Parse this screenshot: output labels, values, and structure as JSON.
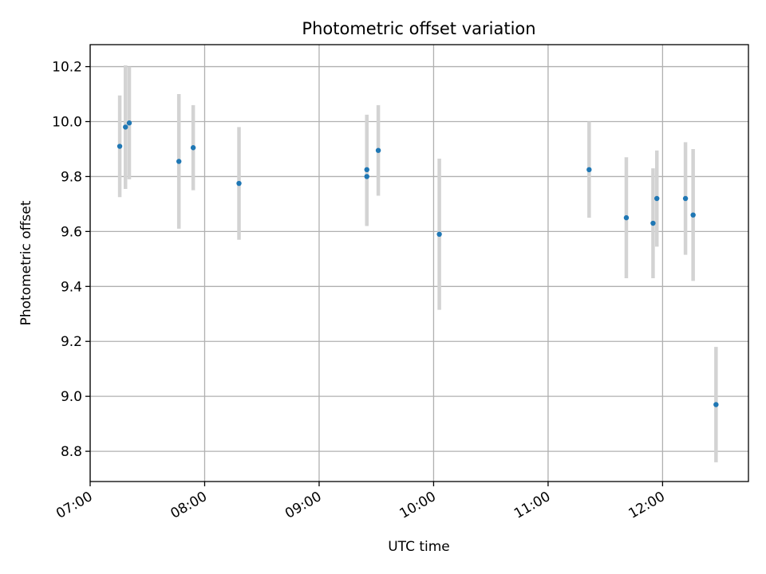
{
  "chart_data": {
    "type": "scatter",
    "title": "Photometric offset variation",
    "xlabel": "UTC time",
    "ylabel": "Photometric offset",
    "x_unit": "minutes since 07:00 UTC",
    "xlim": [
      0,
      345
    ],
    "ylim": [
      8.69,
      10.28
    ],
    "grid": true,
    "x_ticks": [
      {
        "value": 0,
        "label": "07:00"
      },
      {
        "value": 60,
        "label": "08:00"
      },
      {
        "value": 120,
        "label": "09:00"
      },
      {
        "value": 180,
        "label": "10:00"
      },
      {
        "value": 240,
        "label": "11:00"
      },
      {
        "value": 300,
        "label": "12:00"
      }
    ],
    "y_ticks": [
      {
        "value": 8.8,
        "label": "8.8"
      },
      {
        "value": 9.0,
        "label": "9.0"
      },
      {
        "value": 9.2,
        "label": "9.2"
      },
      {
        "value": 9.4,
        "label": "9.4"
      },
      {
        "value": 9.6,
        "label": "9.6"
      },
      {
        "value": 9.8,
        "label": "9.8"
      },
      {
        "value": 10.0,
        "label": "10.0"
      },
      {
        "value": 10.2,
        "label": "10.2"
      }
    ],
    "point_color": "#1f77b4",
    "errorbar_color": "#d3d3d3",
    "points": [
      {
        "x": 15.5,
        "y": 9.91,
        "err": 0.185
      },
      {
        "x": 18.5,
        "y": 9.98,
        "err": 0.225
      },
      {
        "x": 20.5,
        "y": 9.995,
        "err": 0.205
      },
      {
        "x": 46.5,
        "y": 9.855,
        "err": 0.245
      },
      {
        "x": 54.0,
        "y": 9.905,
        "err": 0.155
      },
      {
        "x": 78.0,
        "y": 9.775,
        "err": 0.205
      },
      {
        "x": 145.0,
        "y": 9.825,
        "err": 0.2
      },
      {
        "x": 145.0,
        "y": 9.8,
        "err": 0.18
      },
      {
        "x": 151.0,
        "y": 9.895,
        "err": 0.165
      },
      {
        "x": 183.0,
        "y": 9.59,
        "err": 0.275
      },
      {
        "x": 261.5,
        "y": 9.825,
        "err": 0.175
      },
      {
        "x": 281.0,
        "y": 9.65,
        "err": 0.22
      },
      {
        "x": 295.0,
        "y": 9.63,
        "err": 0.2
      },
      {
        "x": 297.0,
        "y": 9.72,
        "err": 0.175
      },
      {
        "x": 312.0,
        "y": 9.72,
        "err": 0.205
      },
      {
        "x": 316.0,
        "y": 9.66,
        "err": 0.24
      },
      {
        "x": 328.0,
        "y": 8.97,
        "err": 0.21
      }
    ]
  }
}
